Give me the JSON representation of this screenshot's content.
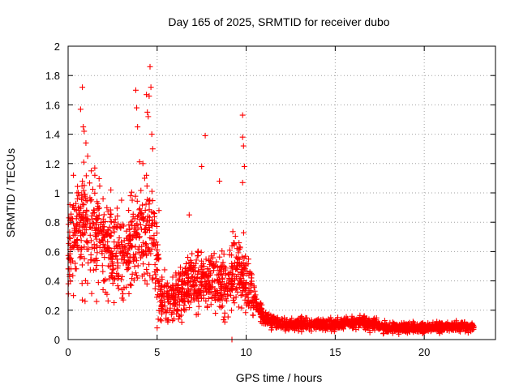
{
  "chart_data": {
    "type": "scatter",
    "title": "Day 165 of 2025, SRMTID for receiver dubo",
    "xlabel": "GPS time / hours",
    "ylabel": "SRMTID / TECUs",
    "xlim": [
      0,
      24
    ],
    "ylim": [
      0,
      2
    ],
    "xticks": [
      0,
      5,
      10,
      15,
      20
    ],
    "yticks": [
      0,
      0.2,
      0.4,
      0.6,
      0.8,
      1,
      1.2,
      1.4,
      1.6,
      1.8,
      2
    ],
    "xtick_labels": [
      "0",
      "5",
      "10",
      "15",
      "20"
    ],
    "ytick_labels": [
      "0",
      "0.2",
      "0.4",
      "0.6",
      "0.8",
      "1",
      "1.2",
      "1.4",
      "1.6",
      "1.8",
      "2"
    ],
    "grid": true,
    "marker": "plus",
    "color": "#ff0000",
    "trend": [
      [
        0.0,
        0.6
      ],
      [
        0.5,
        0.75
      ],
      [
        1.0,
        0.75
      ],
      [
        1.5,
        0.78
      ],
      [
        2.0,
        0.65
      ],
      [
        2.5,
        0.6
      ],
      [
        3.0,
        0.55
      ],
      [
        3.5,
        0.62
      ],
      [
        4.0,
        0.72
      ],
      [
        4.5,
        0.72
      ],
      [
        5.0,
        0.6
      ],
      [
        5.2,
        0.25
      ],
      [
        6.0,
        0.28
      ],
      [
        6.5,
        0.35
      ],
      [
        7.0,
        0.42
      ],
      [
        7.5,
        0.38
      ],
      [
        8.0,
        0.42
      ],
      [
        8.5,
        0.38
      ],
      [
        9.0,
        0.4
      ],
      [
        9.5,
        0.45
      ],
      [
        10.0,
        0.4
      ],
      [
        10.5,
        0.25
      ],
      [
        11.0,
        0.15
      ],
      [
        12.0,
        0.1
      ],
      [
        15.0,
        0.1
      ],
      [
        16.5,
        0.12
      ],
      [
        18.0,
        0.08
      ],
      [
        20.0,
        0.08
      ],
      [
        22.0,
        0.09
      ],
      [
        22.8,
        0.08
      ]
    ],
    "spikes": [
      [
        0.8,
        1.72
      ],
      [
        0.7,
        1.57
      ],
      [
        0.85,
        1.45
      ],
      [
        0.9,
        1.42
      ],
      [
        1.0,
        1.34
      ],
      [
        1.1,
        1.25
      ],
      [
        1.3,
        1.15
      ],
      [
        1.5,
        1.12
      ],
      [
        3.8,
        1.7
      ],
      [
        3.85,
        1.58
      ],
      [
        3.9,
        1.45
      ],
      [
        4.4,
        1.67
      ],
      [
        4.45,
        1.55
      ],
      [
        4.5,
        1.52
      ],
      [
        4.55,
        1.66
      ],
      [
        4.6,
        1.86
      ],
      [
        4.65,
        1.72
      ],
      [
        4.7,
        1.4
      ],
      [
        4.75,
        1.3
      ],
      [
        4.4,
        1.12
      ],
      [
        7.7,
        1.39
      ],
      [
        7.5,
        1.18
      ],
      [
        8.5,
        1.08
      ],
      [
        9.8,
        1.53
      ],
      [
        9.8,
        1.38
      ],
      [
        9.85,
        1.32
      ],
      [
        9.9,
        1.18
      ],
      [
        9.8,
        1.07
      ],
      [
        6.8,
        0.85
      ],
      [
        2.4,
        1.02
      ],
      [
        3.0,
        0.95
      ],
      [
        3.6,
        0.95
      ],
      [
        4.2,
        1.2
      ],
      [
        4.3,
        1.1
      ],
      [
        5.1,
        0.88
      ],
      [
        0.1,
        0.92
      ],
      [
        0.3,
        1.12
      ],
      [
        0.5,
        1.0
      ],
      [
        0.6,
        0.98
      ]
    ],
    "lows": [
      [
        1.6,
        0.26
      ],
      [
        3.1,
        0.27
      ],
      [
        5.0,
        0.08
      ],
      [
        6.2,
        0.14
      ],
      [
        7.2,
        0.17
      ],
      [
        8.8,
        0.12
      ],
      [
        9.2,
        0.0
      ],
      [
        8.6,
        0.22
      ],
      [
        5.6,
        0.12
      ],
      [
        0.3,
        0.3
      ]
    ],
    "n_points": 2600,
    "seed": 165
  }
}
